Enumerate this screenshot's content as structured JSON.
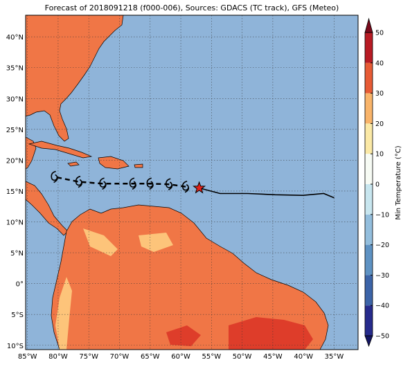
{
  "title": "Forecast of 2018091218 (f000-006), Sources: GDACS (TC track), GFS (Meteo)",
  "map": {
    "xlim": [
      -85.3,
      -31.1
    ],
    "ylim": [
      -10.7,
      43.5
    ],
    "grid": true,
    "xticks": [
      {
        "value": -85,
        "label": "85°W"
      },
      {
        "value": -80,
        "label": "80°W"
      },
      {
        "value": -75,
        "label": "75°W"
      },
      {
        "value": -70,
        "label": "70°W"
      },
      {
        "value": -65,
        "label": "65°W"
      },
      {
        "value": -60,
        "label": "60°W"
      },
      {
        "value": -55,
        "label": "55°W"
      },
      {
        "value": -50,
        "label": "50°W"
      },
      {
        "value": -45,
        "label": "45°W"
      },
      {
        "value": -40,
        "label": "40°W"
      },
      {
        "value": -35,
        "label": "35°W"
      }
    ],
    "yticks": [
      {
        "value": -10,
        "label": "10°S"
      },
      {
        "value": -5,
        "label": "5°S"
      },
      {
        "value": 0,
        "label": "0°"
      },
      {
        "value": 5,
        "label": "5°N"
      },
      {
        "value": 10,
        "label": "10°N"
      },
      {
        "value": 15,
        "label": "15°N"
      },
      {
        "value": 20,
        "label": "20°N"
      },
      {
        "value": 25,
        "label": "25°N"
      },
      {
        "value": 30,
        "label": "30°N"
      },
      {
        "value": 35,
        "label": "35°N"
      },
      {
        "value": 40,
        "label": "40°N"
      }
    ]
  },
  "track": {
    "observed": {
      "lon": [
        -57,
        -53.6,
        -49.1,
        -44.6,
        -40.1,
        -36.7,
        -35.0
      ],
      "lat": [
        15.5,
        14.6,
        14.6,
        14.4,
        14.3,
        14.6,
        13.9
      ]
    },
    "forecast": {
      "lon": [
        -59.2,
        -61.9,
        -65.0,
        -67.8,
        -72.7,
        -76.6,
        -80.6
      ],
      "lat": [
        15.7,
        16.1,
        16.2,
        16.2,
        16.2,
        16.5,
        17.3
      ]
    }
  },
  "colorbar": {
    "label": "Min Temperature (°C)",
    "levels": [
      -50,
      -40,
      -30,
      -20,
      -10,
      0,
      10,
      20,
      30,
      40,
      50
    ],
    "colors": [
      "#262b8c",
      "#3c64a8",
      "#5e92c3",
      "#93bedd",
      "#c8e6ef",
      "#f7fbf4",
      "#fbe9a6",
      "#f9b46a",
      "#e75b35",
      "#b81b24"
    ],
    "under_color": "#141663",
    "over_color": "#7a0a1c",
    "ticks": [
      {
        "value": -50,
        "label": "−50"
      },
      {
        "value": -40,
        "label": "−40"
      },
      {
        "value": -30,
        "label": "−30"
      },
      {
        "value": -20,
        "label": "−20"
      },
      {
        "value": -10,
        "label": "−10"
      },
      0,
      10,
      20,
      30,
      40,
      50
    ]
  }
}
